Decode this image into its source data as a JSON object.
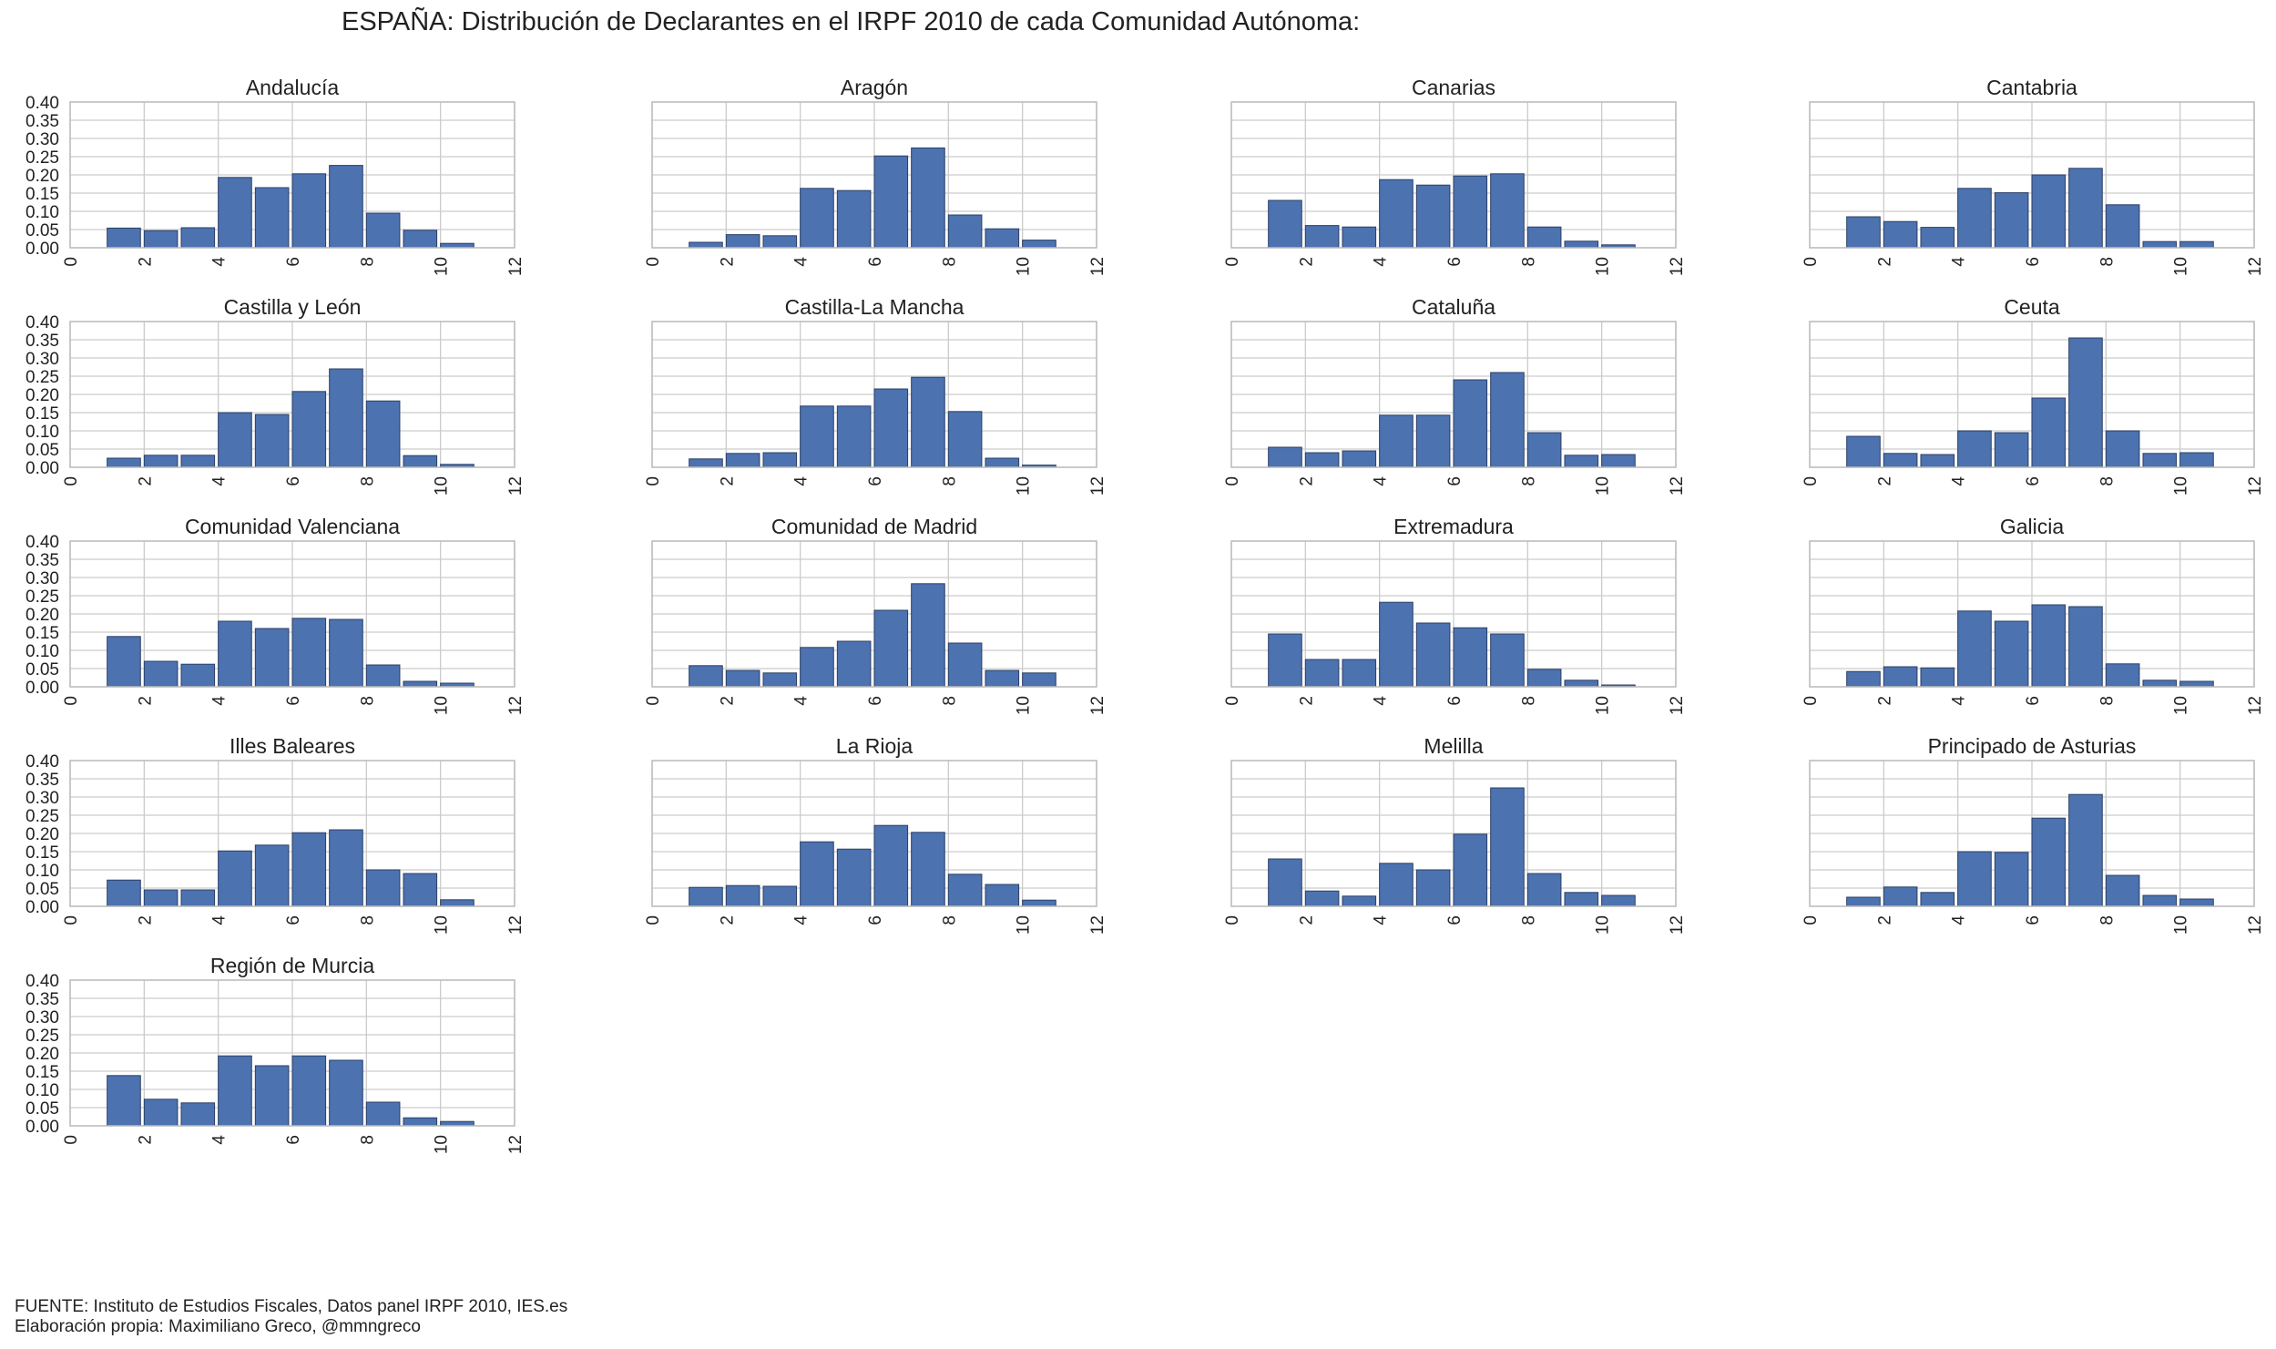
{
  "title": "ESPAÑA: Distribución de Declarantes en el IRPF 2010 de cada Comunidad Autónoma:",
  "footer": {
    "line1": "FUENTE: Instituto de Estudios Fiscales, Datos panel IRPF 2010, IES.es",
    "line2": "Elaboración propia: Maximiliano Greco, @mmngreco"
  },
  "colors": {
    "bar": "#4c72b0",
    "bar_edge": "#2b3f66",
    "grid": "#cccccc",
    "frame": "#bcbcbc"
  },
  "chart_data": {
    "type": "bar",
    "layout": "small-multiples histogram grid, 4 columns",
    "x_ticks": [
      0,
      2,
      4,
      6,
      8,
      10,
      12
    ],
    "y_ticks": [
      0.0,
      0.05,
      0.1,
      0.15,
      0.2,
      0.25,
      0.3,
      0.35,
      0.4
    ],
    "y_tick_labels": [
      "0.00",
      "0.05",
      "0.10",
      "0.15",
      "0.20",
      "0.25",
      "0.30",
      "0.35",
      "0.40"
    ],
    "xlim": [
      0,
      12
    ],
    "ylim": [
      0,
      0.4
    ],
    "bins": [
      1,
      2,
      3,
      4,
      5,
      6,
      7,
      8,
      9,
      10
    ],
    "bin_width": 0.9,
    "grid": true,
    "panels": [
      {
        "name": "Andalucía",
        "values": [
          0.054,
          0.047,
          0.055,
          0.193,
          0.165,
          0.203,
          0.226,
          0.095,
          0.048,
          0.012
        ]
      },
      {
        "name": "Aragón",
        "values": [
          0.015,
          0.036,
          0.033,
          0.163,
          0.157,
          0.252,
          0.274,
          0.09,
          0.052,
          0.021
        ]
      },
      {
        "name": "Canarias",
        "values": [
          0.13,
          0.061,
          0.057,
          0.187,
          0.172,
          0.197,
          0.203,
          0.057,
          0.018,
          0.008
        ]
      },
      {
        "name": "Cantabria",
        "values": [
          0.085,
          0.072,
          0.056,
          0.163,
          0.151,
          0.2,
          0.218,
          0.118,
          0.017,
          0.017
        ]
      },
      {
        "name": "Castilla y León",
        "values": [
          0.025,
          0.033,
          0.033,
          0.15,
          0.145,
          0.208,
          0.27,
          0.182,
          0.032,
          0.008
        ]
      },
      {
        "name": "Castilla-La Mancha",
        "values": [
          0.023,
          0.038,
          0.04,
          0.168,
          0.168,
          0.215,
          0.247,
          0.153,
          0.025,
          0.006
        ]
      },
      {
        "name": "Cataluña",
        "values": [
          0.055,
          0.04,
          0.045,
          0.143,
          0.143,
          0.24,
          0.26,
          0.095,
          0.033,
          0.035
        ]
      },
      {
        "name": "Ceuta",
        "values": [
          0.085,
          0.038,
          0.035,
          0.1,
          0.095,
          0.19,
          0.355,
          0.1,
          0.038,
          0.04
        ]
      },
      {
        "name": "Comunidad Valenciana",
        "values": [
          0.138,
          0.07,
          0.062,
          0.18,
          0.16,
          0.188,
          0.185,
          0.06,
          0.015,
          0.01
        ]
      },
      {
        "name": "Comunidad de Madrid",
        "values": [
          0.058,
          0.045,
          0.038,
          0.108,
          0.125,
          0.21,
          0.283,
          0.12,
          0.045,
          0.038
        ]
      },
      {
        "name": "Extremadura",
        "values": [
          0.145,
          0.075,
          0.075,
          0.232,
          0.175,
          0.162,
          0.145,
          0.048,
          0.018,
          0.005
        ]
      },
      {
        "name": "Galicia",
        "values": [
          0.042,
          0.055,
          0.052,
          0.208,
          0.18,
          0.225,
          0.22,
          0.063,
          0.018,
          0.015
        ]
      },
      {
        "name": "Illes Baleares",
        "values": [
          0.072,
          0.045,
          0.045,
          0.152,
          0.168,
          0.202,
          0.21,
          0.1,
          0.09,
          0.018
        ]
      },
      {
        "name": "La Rioja",
        "values": [
          0.052,
          0.057,
          0.055,
          0.177,
          0.157,
          0.222,
          0.203,
          0.088,
          0.06,
          0.017
        ]
      },
      {
        "name": "Melilla",
        "values": [
          0.13,
          0.042,
          0.028,
          0.118,
          0.1,
          0.198,
          0.325,
          0.09,
          0.038,
          0.03
        ]
      },
      {
        "name": "Principado de Asturias",
        "values": [
          0.025,
          0.053,
          0.038,
          0.15,
          0.148,
          0.242,
          0.307,
          0.085,
          0.03,
          0.02
        ]
      },
      {
        "name": "Región de Murcia",
        "values": [
          0.138,
          0.073,
          0.063,
          0.192,
          0.165,
          0.192,
          0.18,
          0.065,
          0.022,
          0.012
        ]
      }
    ]
  }
}
